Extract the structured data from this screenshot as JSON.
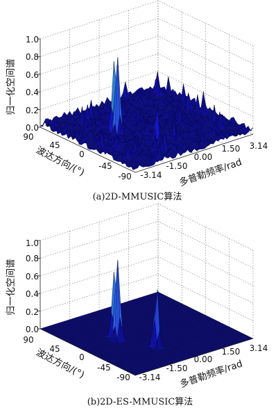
{
  "chart_data": [
    {
      "type": "surface",
      "caption": "(a)2D-MMUSIC算法",
      "zlabel": "归一化空间谱",
      "xlabel": "波达方向/(°)",
      "ylabel": "多普勒频率/rad",
      "zticks": [
        "0.0",
        "0.2",
        "0.4",
        "0.6",
        "0.8",
        "1.0"
      ],
      "xticks": [
        "90",
        "45",
        "0",
        "-45",
        "-90"
      ],
      "yticks": [
        "-3.14",
        "-1.50",
        "0.00",
        "1.50",
        "3.14"
      ],
      "zlim": [
        0,
        1
      ],
      "xlim": [
        90,
        -90
      ],
      "ylim": [
        -3.14,
        3.14
      ],
      "noise_floor": 0.1,
      "peaks": [
        {
          "doa": 5,
          "doppler": -1.4,
          "value": 1.0
        },
        {
          "doa": 15,
          "doppler": -1.3,
          "value": 0.92
        },
        {
          "doa": -40,
          "doppler": -0.6,
          "value": 0.45
        }
      ],
      "colormap": [
        "#0a0a6e",
        "#1515c8",
        "#2b5de0",
        "#2fa0c8",
        "#7fd06a",
        "#f0e040"
      ]
    },
    {
      "type": "surface",
      "caption": "(b)2D-ES-MMUSIC算法",
      "zlabel": "归一化空间谱",
      "xlabel": "波达方向/(°)",
      "ylabel": "多普勒频率/rad",
      "zticks": [
        "0.0",
        "0.2",
        "0.4",
        "0.6",
        "0.8",
        "1.0"
      ],
      "xticks": [
        "90",
        "45",
        "0",
        "-45",
        "-90"
      ],
      "yticks": [
        "-3.14",
        "-1.50",
        "0.00",
        "1.50",
        "3.14"
      ],
      "zlim": [
        0,
        1
      ],
      "xlim": [
        90,
        -90
      ],
      "ylim": [
        -3.14,
        3.14
      ],
      "noise_floor": 0.0,
      "peaks": [
        {
          "doa": 5,
          "doppler": -1.4,
          "value": 1.0
        },
        {
          "doa": 15,
          "doppler": -1.3,
          "value": 0.82
        },
        {
          "doa": -40,
          "doppler": -0.6,
          "value": 0.72
        }
      ],
      "colormap": [
        "#0a0a6e",
        "#1515c8",
        "#2b5de0",
        "#2fa0c8",
        "#7fd06a",
        "#f0e040"
      ]
    }
  ]
}
